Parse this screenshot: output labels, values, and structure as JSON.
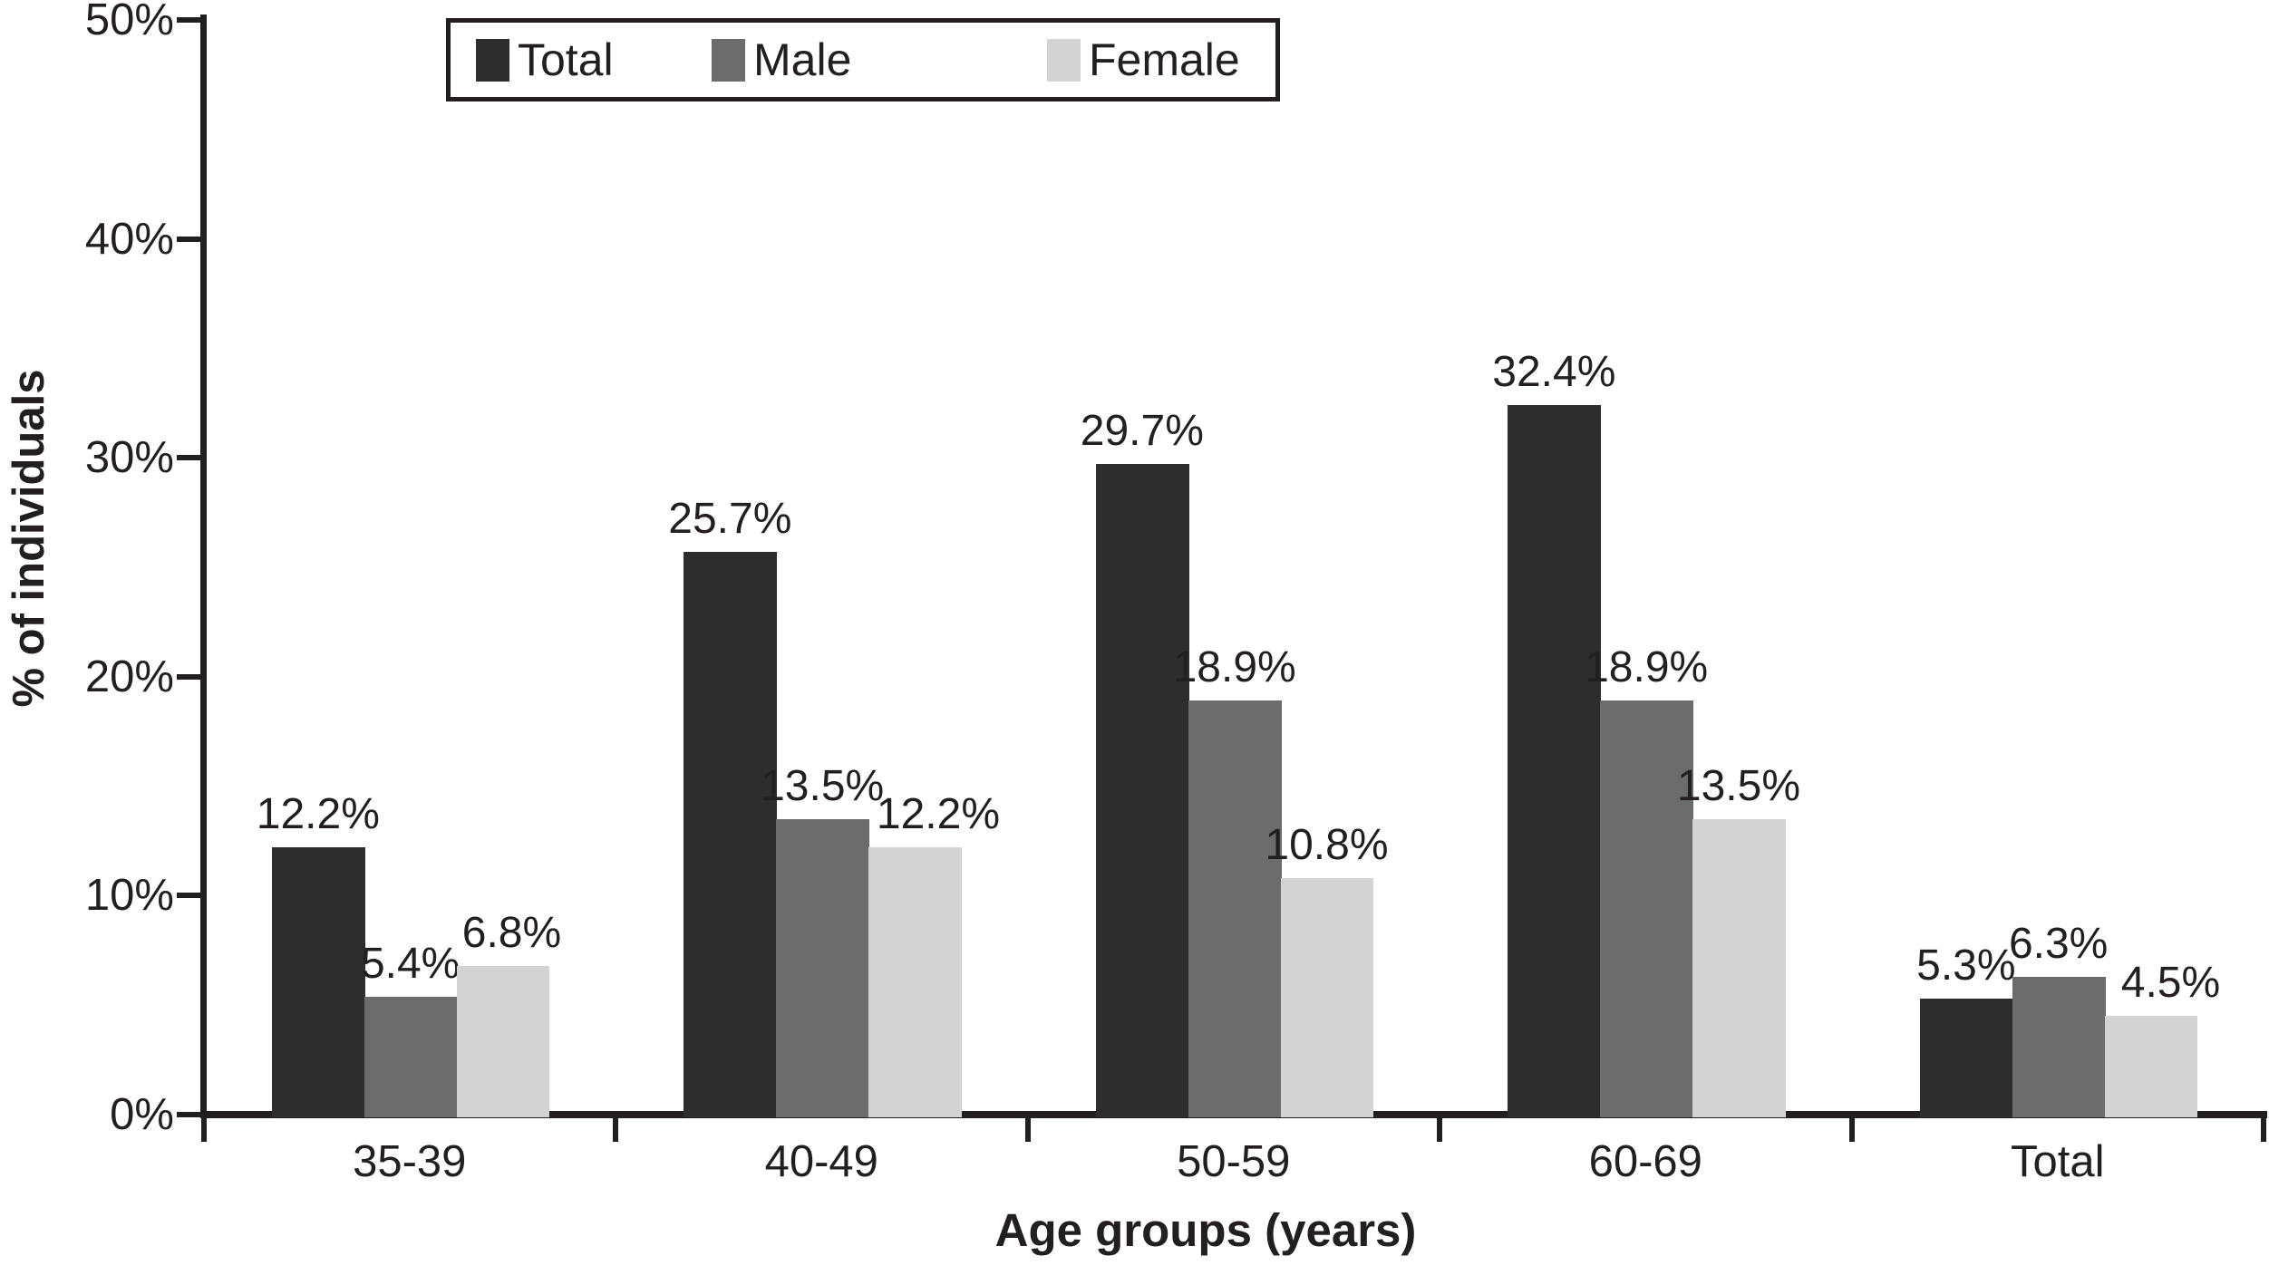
{
  "figure": {
    "background": "#ffffff",
    "text_color": "#231f20",
    "axis_color": "#231f20"
  },
  "chart_data": {
    "type": "bar",
    "title": "",
    "xlabel": "Age groups (years)",
    "ylabel": "% of individuals",
    "categories": [
      "35-39",
      "40-49",
      "50-59",
      "60-69",
      "Total"
    ],
    "series": [
      {
        "name": "Total",
        "color": "#2e2c2d",
        "values": [
          12.2,
          25.7,
          29.7,
          32.4,
          5.3
        ]
      },
      {
        "name": "Male",
        "color": "#6a6c6e",
        "values": [
          5.4,
          13.5,
          18.9,
          18.9,
          6.3
        ]
      },
      {
        "name": "Female",
        "color": "#d2d3d5",
        "values": [
          6.8,
          12.2,
          10.8,
          13.5,
          4.5
        ]
      }
    ],
    "data_labels": [
      [
        "12.2%",
        "5.4%",
        "6.8%"
      ],
      [
        "25.7%",
        "13.5%",
        "12.2%"
      ],
      [
        "29.7%",
        "18.9%",
        "10.8%"
      ],
      [
        "32.4%",
        "18.9%",
        "13.5%"
      ],
      [
        "5.3%",
        "6.3%",
        "4.5%"
      ]
    ],
    "y_ticks": [
      "0%",
      "10%",
      "20%",
      "30%",
      "40%",
      "50%"
    ],
    "ylim": [
      0,
      50
    ],
    "grid": false,
    "legend_position": "top"
  }
}
